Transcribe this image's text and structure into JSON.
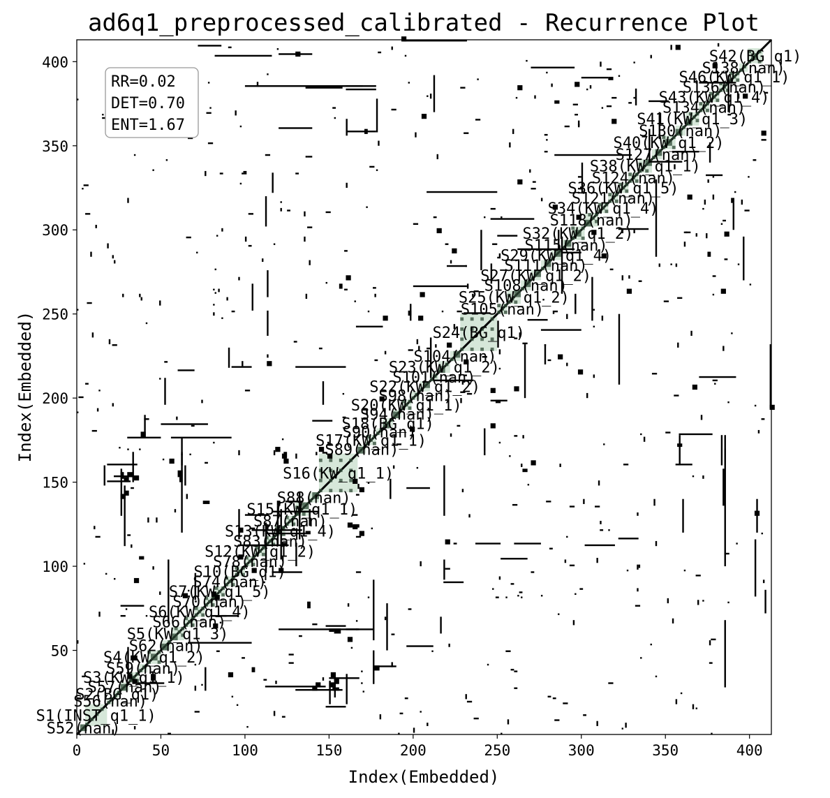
{
  "chart_data": {
    "type": "heatmap",
    "title": "ad6q1_preprocessed_calibrated - Recurrence Plot",
    "xlabel": "Index(Embedded)",
    "ylabel": "Index(Embedded)",
    "xlim": [
      0,
      413
    ],
    "ylim": [
      0,
      413
    ],
    "xticks": [
      0,
      50,
      100,
      150,
      200,
      250,
      300,
      350,
      400
    ],
    "yticks": [
      50,
      100,
      150,
      200,
      250,
      300,
      350,
      400
    ],
    "xtick_labels": [
      "0",
      "50",
      "100",
      "150",
      "200",
      "250",
      "300",
      "350",
      "400"
    ],
    "ytick_labels": [
      "50",
      "100",
      "150",
      "200",
      "250",
      "300",
      "350",
      "400"
    ],
    "stats": [
      "RR=0.02",
      "DET=0.70",
      "ENT=1.67"
    ],
    "colors": {
      "recurrence": "#000000",
      "segment": "#cfe3d2",
      "background": "#ffffff"
    },
    "segments": [
      {
        "start": 2,
        "end": 6,
        "label": "S52(nan)"
      },
      {
        "start": 5,
        "end": 18,
        "label": "S1(INST_q1_1)"
      },
      {
        "start": 18,
        "end": 22,
        "label": "S56(nan)"
      },
      {
        "start": 22,
        "end": 26,
        "label": "S2(BG_q1)"
      },
      {
        "start": 26,
        "end": 31,
        "label": "S57(nan)"
      },
      {
        "start": 31,
        "end": 37,
        "label": "S3(KW_q1_1)"
      },
      {
        "start": 37,
        "end": 42,
        "label": "S59(nan)"
      },
      {
        "start": 42,
        "end": 50,
        "label": "S4(KW_q1_2)"
      },
      {
        "start": 50,
        "end": 56,
        "label": "S62(nan)"
      },
      {
        "start": 56,
        "end": 64,
        "label": "S5(KW_q1_3)"
      },
      {
        "start": 64,
        "end": 70,
        "label": "S66(nan)"
      },
      {
        "start": 70,
        "end": 76,
        "label": "S6(KW_q1_4)"
      },
      {
        "start": 76,
        "end": 82,
        "label": "S70(nan)"
      },
      {
        "start": 82,
        "end": 88,
        "label": "S7(KW_q1_5)"
      },
      {
        "start": 88,
        "end": 94,
        "label": "S74(nan)"
      },
      {
        "start": 94,
        "end": 100,
        "label": "S10(BG_q1)"
      },
      {
        "start": 100,
        "end": 106,
        "label": "S78(nan)"
      },
      {
        "start": 106,
        "end": 112,
        "label": "S12(KW_q1_2)"
      },
      {
        "start": 112,
        "end": 118,
        "label": "S83(nan)"
      },
      {
        "start": 118,
        "end": 124,
        "label": "S13(KW_q1_4)"
      },
      {
        "start": 124,
        "end": 130,
        "label": "S87(nan)"
      },
      {
        "start": 130,
        "end": 138,
        "label": "S15(KW_q1_1)"
      },
      {
        "start": 138,
        "end": 144,
        "label": "S88(nan)"
      },
      {
        "start": 144,
        "end": 167,
        "label": "S16(KW_q1_1)"
      },
      {
        "start": 167,
        "end": 172,
        "label": "S89(nan)"
      },
      {
        "start": 172,
        "end": 178,
        "label": "S17(KW_q1_1)"
      },
      {
        "start": 178,
        "end": 182,
        "label": "S90(nan)"
      },
      {
        "start": 182,
        "end": 188,
        "label": "S18(BG_q1)"
      },
      {
        "start": 188,
        "end": 193,
        "label": "S94(nan)"
      },
      {
        "start": 193,
        "end": 199,
        "label": "S20(KW_q1_1)"
      },
      {
        "start": 199,
        "end": 204,
        "label": "S98(nan)"
      },
      {
        "start": 204,
        "end": 210,
        "label": "S22(KW_q1_2)"
      },
      {
        "start": 210,
        "end": 215,
        "label": "S101(nan)"
      },
      {
        "start": 215,
        "end": 222,
        "label": "S23(KW_q1_2)"
      },
      {
        "start": 222,
        "end": 228,
        "label": "S104(nan)"
      },
      {
        "start": 228,
        "end": 250,
        "label": "S24(BG_q1)"
      },
      {
        "start": 250,
        "end": 256,
        "label": "S105(nan)"
      },
      {
        "start": 256,
        "end": 264,
        "label": "S25(KW_q1_2)"
      },
      {
        "start": 264,
        "end": 270,
        "label": "S108(nan)"
      },
      {
        "start": 270,
        "end": 276,
        "label": "S27(KW_q1_2)"
      },
      {
        "start": 276,
        "end": 282,
        "label": "S111(nan)"
      },
      {
        "start": 282,
        "end": 288,
        "label": "S29(KW_q1_4)"
      },
      {
        "start": 288,
        "end": 294,
        "label": "S115(nan)"
      },
      {
        "start": 294,
        "end": 302,
        "label": "S32(KW_q1_2)"
      },
      {
        "start": 302,
        "end": 310,
        "label": "S118(nan)"
      },
      {
        "start": 310,
        "end": 316,
        "label": "S34(KW_q1_4)"
      },
      {
        "start": 316,
        "end": 322,
        "label": "S121(nan)"
      },
      {
        "start": 322,
        "end": 328,
        "label": "S36(KW_q1_5)"
      },
      {
        "start": 328,
        "end": 334,
        "label": "S124(nan)"
      },
      {
        "start": 334,
        "end": 342,
        "label": "S38(KW_q1_1)"
      },
      {
        "start": 342,
        "end": 348,
        "label": "S127(nan)"
      },
      {
        "start": 348,
        "end": 356,
        "label": "S40(KW_q1_2)"
      },
      {
        "start": 356,
        "end": 362,
        "label": "S130(nan)"
      },
      {
        "start": 362,
        "end": 370,
        "label": "S41(KW_q1_3)"
      },
      {
        "start": 370,
        "end": 376,
        "label": "S134(nan)"
      },
      {
        "start": 376,
        "end": 382,
        "label": "S43(KW_q1_4)"
      },
      {
        "start": 382,
        "end": 388,
        "label": "S136(nan)"
      },
      {
        "start": 388,
        "end": 394,
        "label": "S46(KW_q1_1)"
      },
      {
        "start": 394,
        "end": 399,
        "label": "S138(nan)"
      },
      {
        "start": 399,
        "end": 408,
        "label": "S42(BG_q1)"
      }
    ],
    "recurrence_blocks": [
      [
        33,
        36,
        30,
        33
      ],
      [
        44,
        47,
        32,
        36
      ],
      [
        63,
        66,
        81,
        84
      ],
      [
        75,
        79,
        137,
        139
      ],
      [
        104,
        106,
        37,
        40
      ],
      [
        112,
        114,
        121,
        125
      ],
      [
        122,
        124,
        164,
        167
      ],
      [
        136,
        139,
        119,
        121
      ],
      [
        144,
        147,
        168,
        171
      ],
      [
        161,
        164,
        123,
        126
      ],
      [
        164,
        167,
        149,
        152
      ],
      [
        123,
        125,
        164,
        168
      ],
      [
        151,
        154,
        34,
        37
      ],
      [
        153,
        156,
        30,
        33
      ],
      [
        180,
        183,
        198,
        201
      ],
      [
        168,
        171,
        118,
        121
      ],
      [
        150,
        153,
        61,
        63
      ],
      [
        26,
        29,
        140,
        143
      ],
      [
        28,
        31,
        150,
        153
      ],
      [
        26,
        28,
        152,
        156
      ],
      [
        219,
        222,
        113,
        116
      ],
      [
        265,
        268,
        156,
        158
      ],
      [
        246,
        249,
        203,
        206
      ],
      [
        260,
        263,
        204,
        207
      ],
      [
        286,
        289,
        223,
        226
      ],
      [
        357,
        360,
        171,
        173
      ],
      [
        297,
        300,
        306,
        309
      ],
      [
        316,
        319,
        389,
        391
      ],
      [
        327,
        330,
        262,
        265
      ],
      [
        363,
        366,
        318,
        321
      ],
      [
        396,
        399,
        378,
        381
      ],
      [
        366,
        369,
        205,
        208
      ],
      [
        383,
        386,
        262,
        265
      ],
      [
        385,
        388,
        296,
        299
      ],
      [
        412,
        415,
        193,
        196
      ],
      [
        403,
        406,
        130,
        133
      ],
      [
        312,
        315,
        283,
        286
      ],
      [
        270,
        273,
        160,
        163
      ],
      [
        96,
        99,
        104,
        107
      ],
      [
        82,
        85,
        80,
        83
      ],
      [
        60,
        63,
        153,
        157
      ],
      [
        38,
        41,
        176,
        180
      ],
      [
        142,
        145,
        28,
        31
      ],
      [
        161,
        164,
        55,
        58
      ],
      [
        356,
        359,
        407,
        410
      ],
      [
        375,
        377,
        284,
        287
      ],
      [
        182,
        185,
        246,
        249
      ],
      [
        214,
        217,
        298,
        301
      ],
      [
        197,
        199,
        249,
        252
      ],
      [
        90,
        93,
        34,
        37
      ],
      [
        120,
        123,
        96,
        99
      ],
      [
        230,
        233,
        220,
        223
      ]
    ],
    "recurrence_hlines": [
      [
        36,
        52,
        30
      ],
      [
        150,
        168,
        33
      ],
      [
        112,
        136,
        119
      ],
      [
        124,
        140,
        132
      ],
      [
        148,
        160,
        64
      ],
      [
        237,
        252,
        113
      ],
      [
        260,
        276,
        113
      ],
      [
        302,
        320,
        112
      ],
      [
        30,
        50,
        176
      ],
      [
        136,
        158,
        384
      ],
      [
        160,
        178,
        385
      ],
      [
        72,
        86,
        409
      ],
      [
        120,
        140,
        404
      ],
      [
        230,
        246,
        250
      ],
      [
        268,
        280,
        246
      ],
      [
        322,
        340,
        300
      ],
      [
        220,
        232,
        278
      ],
      [
        288,
        300,
        286
      ],
      [
        160,
        176,
        62
      ],
      [
        80,
        96,
        70
      ],
      [
        176,
        190,
        40
      ],
      [
        196,
        212,
        52
      ],
      [
        354,
        370,
        346
      ],
      [
        250,
        262,
        296
      ],
      [
        300,
        316,
        390
      ],
      [
        60,
        70,
        216
      ],
      [
        92,
        104,
        218
      ],
      [
        252,
        268,
        104
      ],
      [
        322,
        334,
        116
      ],
      [
        356,
        366,
        160
      ],
      [
        374,
        384,
        332
      ],
      [
        196,
        210,
        146
      ],
      [
        218,
        230,
        90
      ],
      [
        100,
        114,
        130
      ],
      [
        140,
        152,
        186
      ]
    ],
    "recurrence_vlines": [
      [
        28,
        112,
        148
      ],
      [
        26,
        130,
        158
      ],
      [
        62,
        120,
        168
      ],
      [
        112,
        96,
        126
      ],
      [
        121,
        104,
        134
      ],
      [
        132,
        116,
        144
      ],
      [
        138,
        124,
        134
      ],
      [
        150,
        18,
        32
      ],
      [
        153,
        22,
        36
      ],
      [
        160,
        18,
        36
      ],
      [
        176,
        56,
        92
      ],
      [
        184,
        50,
        78
      ],
      [
        210,
        212,
        236
      ],
      [
        242,
        168,
        182
      ],
      [
        266,
        200,
        232
      ],
      [
        288,
        262,
        296
      ],
      [
        306,
        246,
        272
      ],
      [
        358,
        160,
        178
      ],
      [
        385,
        28,
        68
      ],
      [
        385,
        100,
        170
      ],
      [
        383,
        160,
        178
      ],
      [
        387,
        370,
        392
      ],
      [
        403,
        82,
        116
      ],
      [
        396,
        270,
        296
      ],
      [
        412,
        194,
        232
      ],
      [
        240,
        276,
        300
      ],
      [
        322,
        208,
        250
      ],
      [
        344,
        284,
        330
      ],
      [
        212,
        370,
        392
      ],
      [
        198,
        246,
        256
      ],
      [
        54,
        66,
        104
      ],
      [
        76,
        26,
        40
      ],
      [
        96,
        116,
        134
      ],
      [
        218,
        130,
        160
      ],
      [
        340,
        340,
        360
      ],
      [
        178,
        358,
        378
      ],
      [
        360,
        120,
        140
      ],
      [
        376,
        340,
        352
      ],
      [
        16,
        148,
        160
      ]
    ]
  }
}
